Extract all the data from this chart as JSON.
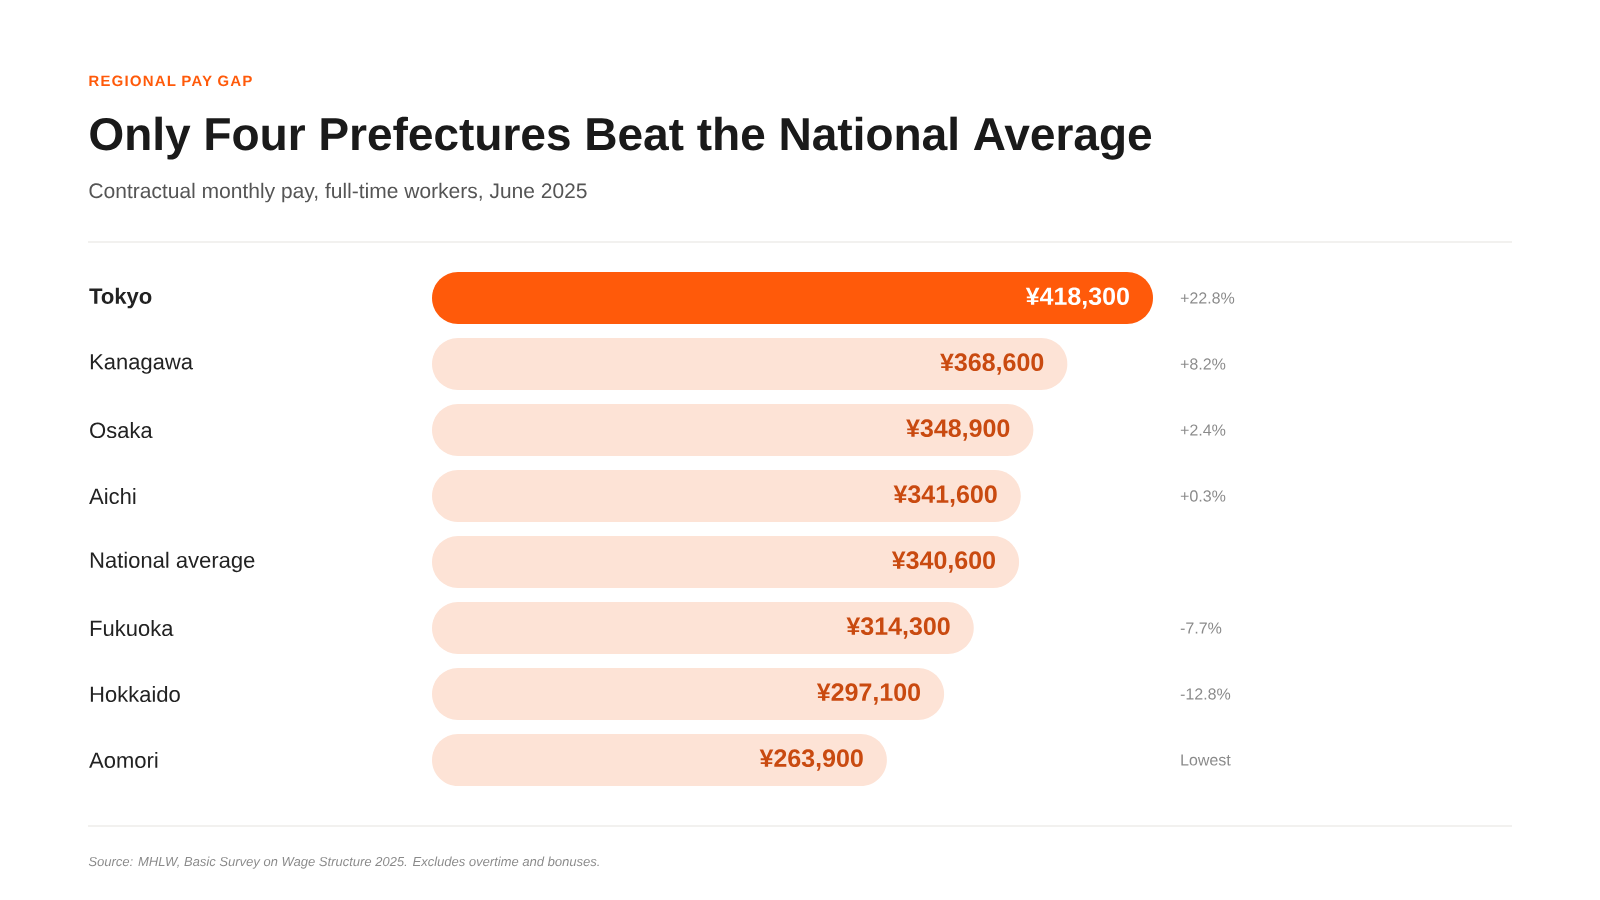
{
  "chart_data": {
    "type": "bar",
    "orientation": "horizontal",
    "title": "Only Four Prefectures Beat the National Average",
    "subtitle": "Contractual monthly pay, full-time workers, June 2025",
    "categories": [
      "Tokyo",
      "Kanagawa",
      "Osaka",
      "Aichi",
      "National average",
      "Fukuoka",
      "Hokkaido",
      "Aomori"
    ],
    "values": [
      418300,
      368600,
      348900,
      341600,
      340600,
      314300,
      297100,
      263900
    ],
    "colors": [
      "#ff5a0a",
      "#fde3d6",
      "#fde3d6",
      "#fde3d6",
      "#fde3d6",
      "#fde3d6",
      "#fde3d6",
      "#fde3d6"
    ],
    "value_labels": [
      "¥418,300",
      "¥368,600",
      "¥348,900",
      "¥341,600",
      "¥340,600",
      "¥314,300",
      "¥297,100",
      "¥263,900"
    ],
    "xlim": [
      0,
      418300
    ],
    "annotations": [
      "REGIONAL PAY GAP",
      "+22.8%",
      "+8.2%",
      "+2.4%",
      "+0.3%",
      "-7.7%",
      "-12.8%",
      "Lowest",
      "Source: MHLW, Basic Survey on Wage Structure 2025. Excludes overtime and bonuses."
    ]
  }
}
